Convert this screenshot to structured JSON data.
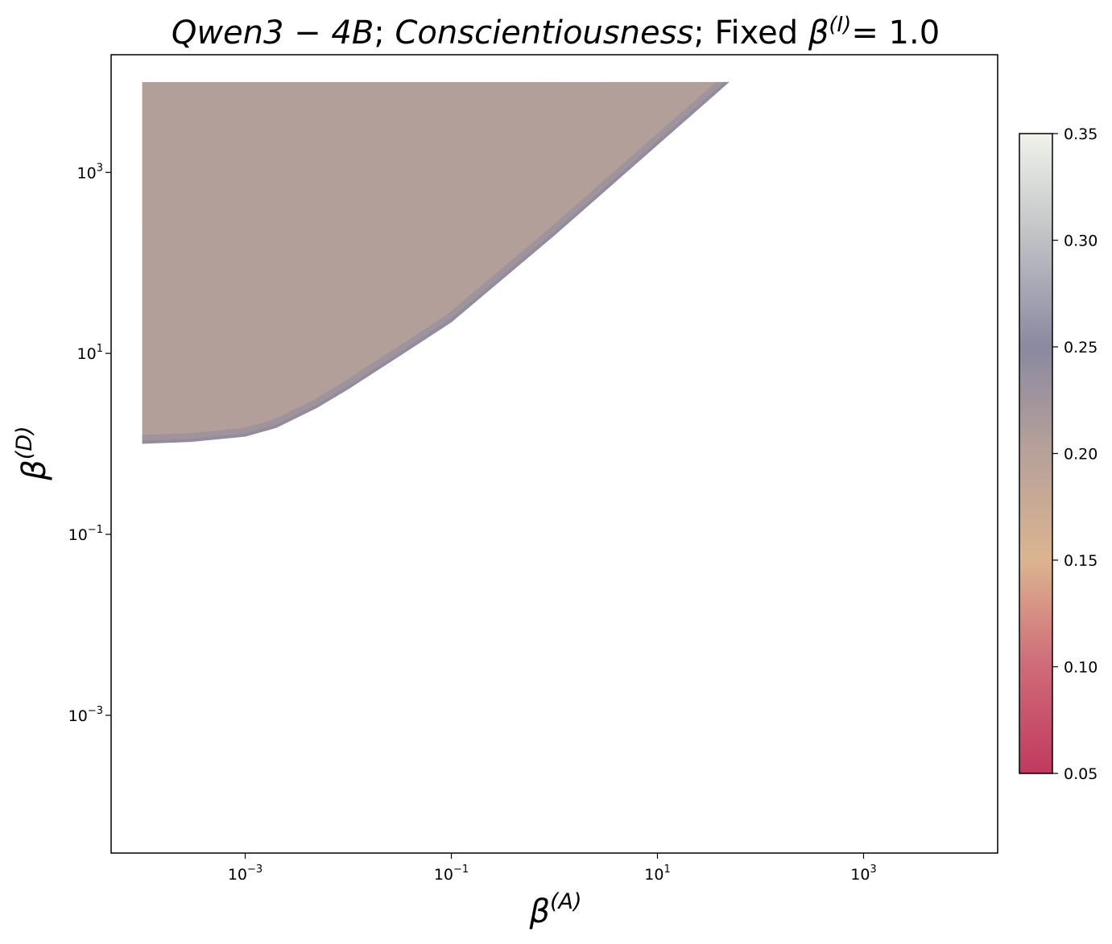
{
  "chart_data": {
    "type": "heatmap",
    "title": {
      "model": "Qwen3 − 4B",
      "trait": "Conscientiousness",
      "fixed_prefix": "Fixed",
      "fixed_symbol": "β",
      "fixed_sup": "(I)",
      "fixed_value": "= 1.0"
    },
    "xlabel": {
      "symbol": "β",
      "sup": "(A)"
    },
    "ylabel": {
      "symbol": "β",
      "sup": "(D)"
    },
    "x_scale": "log",
    "y_scale": "log",
    "xlim": [
      5e-05,
      20000
    ],
    "ylim": [
      3e-05,
      20000
    ],
    "grid": true,
    "xticks": [
      {
        "value": 0.001,
        "base": "10",
        "exp": "−3"
      },
      {
        "value": 0.1,
        "base": "10",
        "exp": "−1"
      },
      {
        "value": 10,
        "base": "10",
        "exp": "1"
      },
      {
        "value": 1000,
        "base": "10",
        "exp": "3"
      }
    ],
    "yticks": [
      {
        "value": 0.001,
        "base": "10",
        "exp": "−3"
      },
      {
        "value": 0.1,
        "base": "10",
        "exp": "−1"
      },
      {
        "value": 10,
        "base": "10",
        "exp": "1"
      },
      {
        "value": 1000,
        "base": "10",
        "exp": "3"
      }
    ],
    "region": {
      "x_min": 0.0001,
      "y_max": 10000,
      "boundary": [
        {
          "x": 0.0001,
          "y": 1.0
        },
        {
          "x": 0.0003,
          "y": 1.05
        },
        {
          "x": 0.001,
          "y": 1.2
        },
        {
          "x": 0.002,
          "y": 1.5
        },
        {
          "x": 0.005,
          "y": 2.5
        },
        {
          "x": 0.01,
          "y": 4.0
        },
        {
          "x": 0.03,
          "y": 9.0
        },
        {
          "x": 0.1,
          "y": 22
        },
        {
          "x": 1,
          "y": 200
        },
        {
          "x": 10,
          "y": 2000
        },
        {
          "x": 50,
          "y": 10000
        }
      ],
      "value_interior": 0.205,
      "value_edge": 0.245
    },
    "colorbar": {
      "min": 0.05,
      "max": 0.35,
      "ticks": [
        "0.05",
        "0.10",
        "0.15",
        "0.20",
        "0.25",
        "0.30",
        "0.35"
      ],
      "colors": [
        {
          "value": 0.05,
          "color": "#c1395e"
        },
        {
          "value": 0.1,
          "color": "#cf6a78"
        },
        {
          "value": 0.15,
          "color": "#dcb48f"
        },
        {
          "value": 0.2,
          "color": "#b8a199"
        },
        {
          "value": 0.25,
          "color": "#8a89a0"
        },
        {
          "value": 0.3,
          "color": "#bfc0c4"
        },
        {
          "value": 0.35,
          "color": "#eff3ea"
        }
      ]
    }
  }
}
